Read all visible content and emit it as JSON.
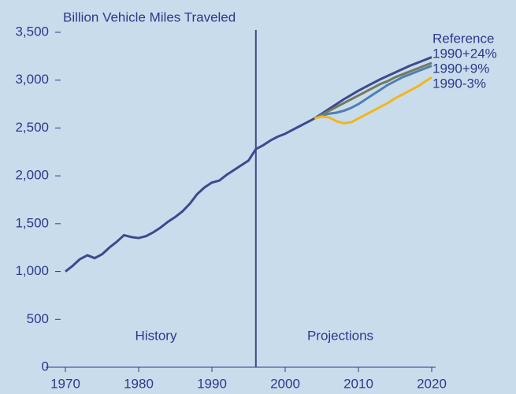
{
  "chart_data": {
    "type": "line",
    "title": "Billion Vehicle Miles Traveled",
    "annotations": [
      "History",
      "Projections"
    ],
    "divider_x": 1996,
    "x": [
      1970,
      1971,
      1972,
      1973,
      1974,
      1975,
      1976,
      1977,
      1978,
      1979,
      1980,
      1981,
      1982,
      1983,
      1984,
      1985,
      1986,
      1987,
      1988,
      1989,
      1990,
      1991,
      1992,
      1993,
      1994,
      1995,
      1996,
      1997,
      1998,
      1999,
      2000,
      2001,
      2002,
      2003,
      2004,
      2005,
      2006,
      2007,
      2008,
      2009,
      2010,
      2011,
      2012,
      2013,
      2014,
      2015,
      2016,
      2017,
      2018,
      2019,
      2020
    ],
    "series": [
      {
        "name": "Reference",
        "color": "#3b4a8e",
        "values": [
          1000,
          1060,
          1130,
          1170,
          1140,
          1180,
          1250,
          1310,
          1380,
          1360,
          1350,
          1370,
          1410,
          1460,
          1520,
          1570,
          1630,
          1710,
          1810,
          1880,
          1930,
          1950,
          2010,
          2060,
          2110,
          2160,
          2280,
          2320,
          2370,
          2410,
          2440,
          2480,
          2520,
          2560,
          2600,
          2650,
          2700,
          2750,
          2800,
          2845,
          2890,
          2930,
          2970,
          3010,
          3045,
          3080,
          3115,
          3150,
          3180,
          3210,
          3240
        ]
      },
      {
        "name": "1990+24%",
        "color": "#737a5c",
        "values": [
          null,
          null,
          null,
          null,
          null,
          null,
          null,
          null,
          null,
          null,
          null,
          null,
          null,
          null,
          null,
          null,
          null,
          null,
          null,
          null,
          null,
          null,
          null,
          null,
          null,
          null,
          null,
          null,
          null,
          null,
          null,
          null,
          null,
          null,
          2600,
          2640,
          2680,
          2720,
          2760,
          2800,
          2840,
          2880,
          2920,
          2960,
          2990,
          3030,
          3060,
          3090,
          3120,
          3150,
          3180
        ]
      },
      {
        "name": "1990+9%",
        "color": "#4f7fb0",
        "values": [
          null,
          null,
          null,
          null,
          null,
          null,
          null,
          null,
          null,
          null,
          null,
          null,
          null,
          null,
          null,
          null,
          null,
          null,
          null,
          null,
          null,
          null,
          null,
          null,
          null,
          null,
          null,
          null,
          null,
          null,
          null,
          null,
          null,
          null,
          2600,
          2630,
          2650,
          2660,
          2680,
          2710,
          2750,
          2800,
          2850,
          2900,
          2950,
          2990,
          3030,
          3060,
          3090,
          3120,
          3150
        ]
      },
      {
        "name": "1990-3%",
        "color": "#f2b51c",
        "values": [
          null,
          null,
          null,
          null,
          null,
          null,
          null,
          null,
          null,
          null,
          null,
          null,
          null,
          null,
          null,
          null,
          null,
          null,
          null,
          null,
          null,
          null,
          null,
          null,
          null,
          null,
          null,
          null,
          null,
          null,
          null,
          null,
          null,
          null,
          2600,
          2620,
          2610,
          2570,
          2550,
          2560,
          2600,
          2640,
          2680,
          2720,
          2760,
          2810,
          2850,
          2890,
          2930,
          2980,
          3030
        ]
      }
    ],
    "xlim": [
      1970,
      2020
    ],
    "xticks": [
      1970,
      1980,
      1990,
      2000,
      2010,
      2020
    ],
    "ylim": [
      0,
      3500
    ],
    "yticks": [
      0,
      500,
      {
        "value": 1000,
        "label": "1,000"
      },
      {
        "value": 1500,
        "label": "1,500"
      },
      {
        "value": 2000,
        "label": "2,000"
      },
      {
        "value": 2500,
        "label": "2,500"
      },
      {
        "value": 3000,
        "label": "3,000"
      },
      {
        "value": 3500,
        "label": "3,500"
      }
    ]
  }
}
